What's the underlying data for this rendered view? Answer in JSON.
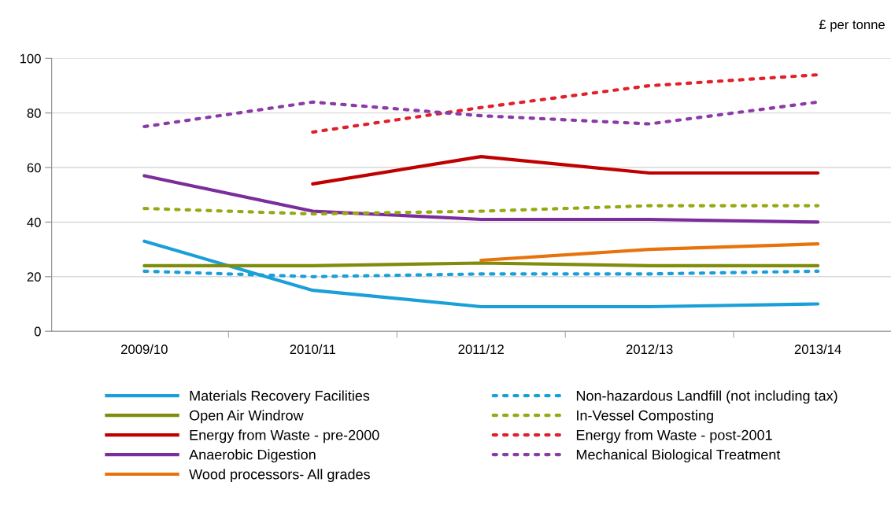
{
  "chart_data": {
    "type": "line",
    "ylabel": "£ per tonne",
    "categories": [
      "2009/10",
      "2010/11",
      "2011/12",
      "2012/13",
      "2013/14"
    ],
    "ylim": [
      0,
      100
    ],
    "yticks": [
      0,
      20,
      40,
      60,
      80,
      100
    ],
    "grid": "y",
    "legend": "bottom",
    "marker": "none",
    "series": [
      {
        "name": "Materials Recovery Facilities",
        "color": "#1a9fd9",
        "line_style": "solid",
        "values": [
          33,
          15,
          9,
          9,
          10
        ]
      },
      {
        "name": "Open Air Windrow",
        "color": "#808c0c",
        "line_style": "solid",
        "values": [
          24,
          24,
          25,
          24,
          24
        ]
      },
      {
        "name": "Energy from Waste - pre-2000",
        "color": "#c00000",
        "line_style": "solid",
        "values": [
          null,
          54,
          64,
          58,
          58
        ]
      },
      {
        "name": "Anaerobic Digestion",
        "color": "#7b2d9b",
        "line_style": "solid",
        "values": [
          57,
          44,
          41,
          41,
          40
        ]
      },
      {
        "name": "Wood processors- All grades",
        "color": "#e8720c",
        "line_style": "solid",
        "values": [
          null,
          null,
          26,
          30,
          32
        ]
      },
      {
        "name": "Non-hazardous Landfill (not including tax)",
        "color": "#1a9fd9",
        "line_style": "dotted",
        "values": [
          22,
          20,
          21,
          21,
          22
        ]
      },
      {
        "name": "In-Vessel Composting",
        "color": "#98a814",
        "line_style": "dotted",
        "values": [
          45,
          43,
          44,
          46,
          46
        ]
      },
      {
        "name": "Energy from Waste - post-2001",
        "color": "#e0202a",
        "line_style": "dotted",
        "values": [
          null,
          73,
          82,
          90,
          94
        ]
      },
      {
        "name": "Mechanical Biological Treatment",
        "color": "#8b3aa8",
        "line_style": "dotted",
        "values": [
          75,
          84,
          79,
          76,
          84
        ]
      }
    ]
  }
}
